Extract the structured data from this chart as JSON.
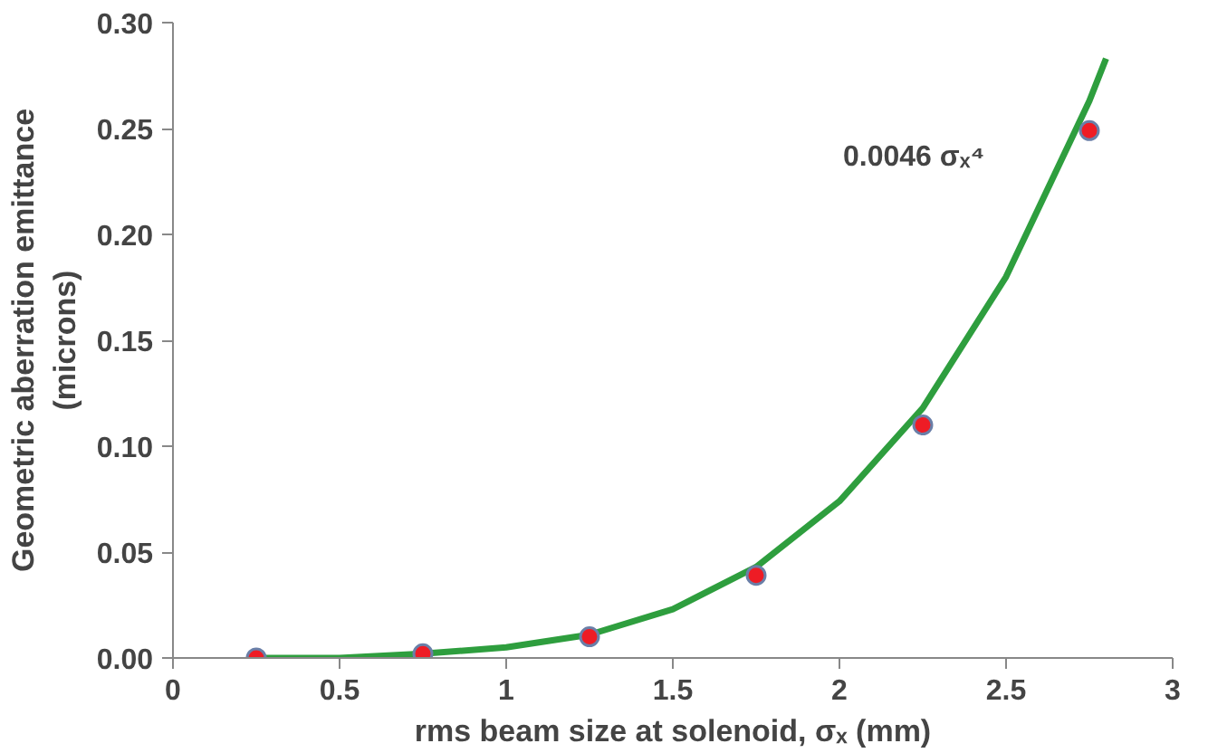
{
  "chart_data": {
    "type": "scatter",
    "xlabel": "rms beam size at solenoid, σₓ (mm)",
    "ylabel": "Geometric aberration emittance\n(microns)",
    "xlim": [
      0,
      3
    ],
    "ylim": [
      0,
      0.3
    ],
    "xticks": [
      0,
      0.5,
      1,
      1.5,
      2,
      2.5,
      3
    ],
    "yticks": [
      {
        "value": 0,
        "label": "0.00"
      },
      {
        "value": 0.05,
        "label": "0.05"
      },
      {
        "value": 0.1,
        "label": "0.10"
      },
      {
        "value": 0.15,
        "label": "0.15"
      },
      {
        "value": 0.2,
        "label": "0.20"
      },
      {
        "value": 0.25,
        "label": "0.25"
      },
      {
        "value": 0.3,
        "label": "0.30"
      }
    ],
    "grid": false,
    "marker": "circle",
    "series": [
      {
        "type": "line",
        "color": "#2e9e3e",
        "x": [
          0.25,
          0.5,
          0.75,
          1,
          1.25,
          1.5,
          1.75,
          2,
          2.25,
          2.5,
          2.75,
          2.8
        ],
        "values": [
          0.0,
          0.0,
          0.002,
          0.005,
          0.011,
          0.023,
          0.043,
          0.074,
          0.118,
          0.18,
          0.263,
          0.283
        ],
        "line_style": "solid",
        "marker": "none"
      },
      {
        "color": "#ee1c25",
        "x": [
          0.25,
          0.75,
          1.25,
          1.75,
          2.25,
          2.75
        ],
        "values": [
          0.0,
          0.002,
          0.01,
          0.039,
          0.11,
          0.249
        ]
      }
    ],
    "annotations": [
      "0.0046 σₓ⁴"
    ]
  }
}
